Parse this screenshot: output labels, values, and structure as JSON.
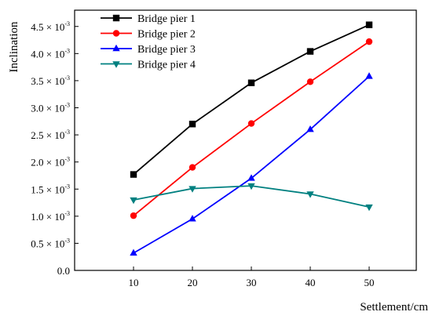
{
  "chart_data": {
    "type": "line",
    "xlabel": "Settlement/cm",
    "ylabel": "Inclination",
    "x": [
      10,
      20,
      30,
      40,
      50
    ],
    "xlim": [
      0,
      58
    ],
    "ylim": [
      0,
      0.0048
    ],
    "x_ticks": [
      "10",
      "20",
      "30",
      "40",
      "50"
    ],
    "y_ticks": [
      {
        "value": 0,
        "mantissa": "0.0",
        "exp": ""
      },
      {
        "value": 0.0005,
        "mantissa": "0.5 × 10",
        "exp": "-3"
      },
      {
        "value": 0.001,
        "mantissa": "1.0 × 10",
        "exp": "-3"
      },
      {
        "value": 0.0015,
        "mantissa": "1.5 × 10",
        "exp": "-3"
      },
      {
        "value": 0.002,
        "mantissa": "2.0 × 10",
        "exp": "-3"
      },
      {
        "value": 0.0025,
        "mantissa": "2.5 × 10",
        "exp": "-3"
      },
      {
        "value": 0.003,
        "mantissa": "3.0 × 10",
        "exp": "-3"
      },
      {
        "value": 0.0035,
        "mantissa": "3.5 × 10",
        "exp": "-3"
      },
      {
        "value": 0.004,
        "mantissa": "4.0 × 10",
        "exp": "-3"
      },
      {
        "value": 0.0045,
        "mantissa": "4.5 × 10",
        "exp": "-3"
      }
    ],
    "grid": false,
    "legend_position": "top-left",
    "series": [
      {
        "name": "Bridge pier 1",
        "color": "#000000",
        "marker": "square",
        "values": [
          0.00177,
          0.0027,
          0.00346,
          0.00404,
          0.00453
        ]
      },
      {
        "name": "Bridge pier 2",
        "color": "#ff0000",
        "marker": "circle",
        "values": [
          0.00101,
          0.0019,
          0.00271,
          0.00348,
          0.00422
        ]
      },
      {
        "name": "Bridge pier 3",
        "color": "#0000ff",
        "marker": "triangle-up",
        "values": [
          0.00032,
          0.00095,
          0.0017,
          0.0026,
          0.00358
        ]
      },
      {
        "name": "Bridge pier 4",
        "color": "#008080",
        "marker": "triangle-down",
        "values": [
          0.0013,
          0.00151,
          0.00156,
          0.00141,
          0.00117
        ]
      }
    ]
  }
}
